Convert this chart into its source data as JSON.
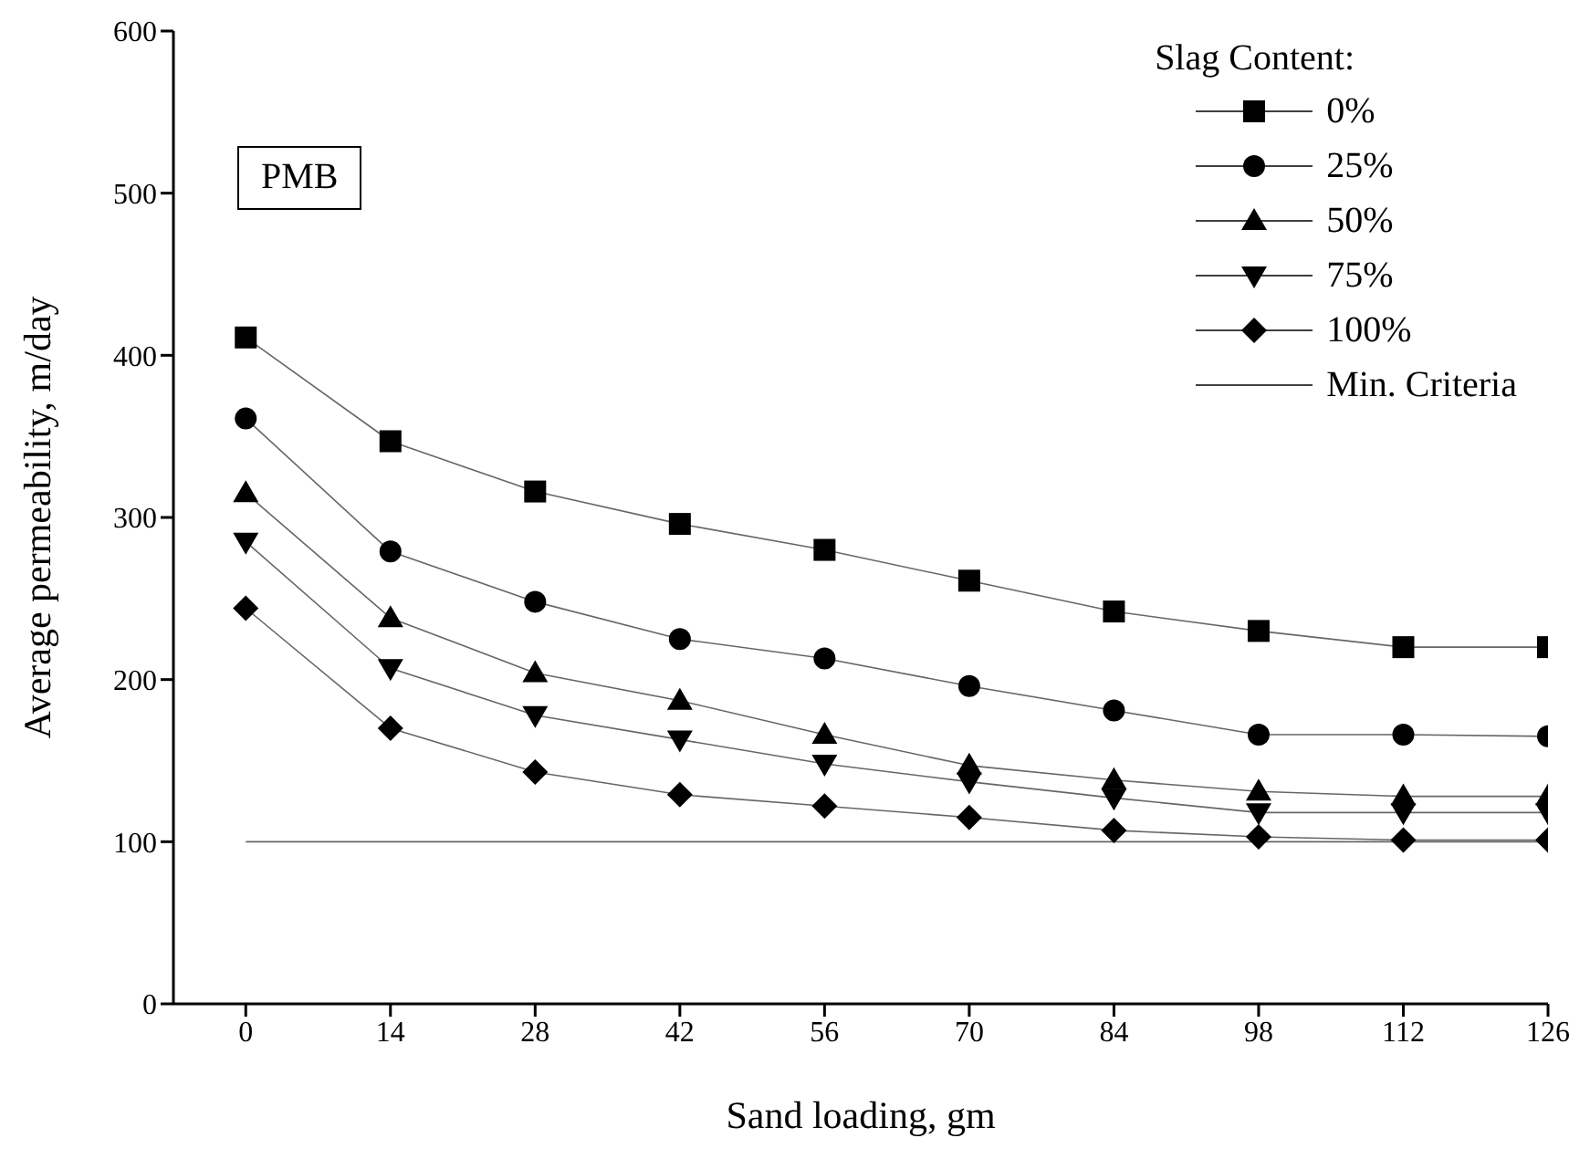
{
  "chart_data": {
    "type": "line",
    "xlabel": "Sand loading, gm",
    "ylabel": "Average permeability, m/day",
    "legend_title": "Slag Content:",
    "annotations": [
      "PMB"
    ],
    "x": [
      0,
      14,
      28,
      42,
      56,
      70,
      84,
      98,
      112,
      126
    ],
    "xlim": [
      -7,
      126
    ],
    "xticks": [
      0,
      14,
      28,
      42,
      56,
      70,
      84,
      98,
      112,
      126
    ],
    "ylim": [
      0,
      600
    ],
    "yticks": [
      0,
      100,
      200,
      300,
      400,
      500,
      600
    ],
    "grid": false,
    "legend": "top right",
    "line_style": "solid",
    "series": [
      {
        "name": "0%",
        "color": "#000000",
        "marker": "square",
        "values": [
          411,
          347,
          316,
          296,
          280,
          261,
          242,
          230,
          220,
          220
        ]
      },
      {
        "name": "25%",
        "color": "#000000",
        "marker": "circle",
        "values": [
          361,
          279,
          248,
          225,
          213,
          196,
          181,
          166,
          166,
          165
        ]
      },
      {
        "name": "50%",
        "color": "#000000",
        "marker": "triangle",
        "values": [
          315,
          238,
          204,
          187,
          166,
          147,
          138,
          131,
          128,
          128
        ]
      },
      {
        "name": "75%",
        "color": "#000000",
        "marker": "triangle-down",
        "values": [
          285,
          207,
          178,
          163,
          148,
          137,
          127,
          118,
          118,
          118
        ]
      },
      {
        "name": "100%",
        "color": "#000000",
        "marker": "diamond",
        "values": [
          244,
          170,
          143,
          129,
          122,
          115,
          107,
          103,
          101,
          101
        ]
      },
      {
        "name": "Min. Criteria",
        "color": "#000000",
        "marker": "none",
        "values": [
          100,
          100,
          100,
          100,
          100,
          100,
          100,
          100,
          100,
          100
        ]
      }
    ]
  }
}
